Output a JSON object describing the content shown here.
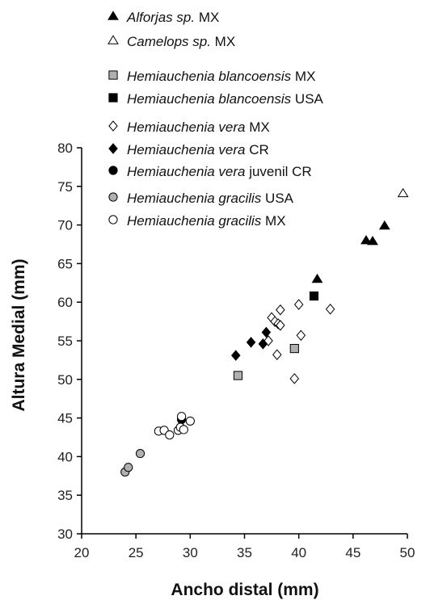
{
  "chart_data": {
    "type": "scatter",
    "title": "",
    "xlabel": "Ancho distal (mm)",
    "ylabel": "Altura Medial (mm)",
    "xlim": [
      20,
      50
    ],
    "ylim": [
      30,
      80
    ],
    "xticks": [
      20,
      25,
      30,
      35,
      40,
      45,
      50
    ],
    "yticks": [
      30,
      35,
      40,
      45,
      50,
      55,
      60,
      65,
      70,
      75,
      80
    ],
    "grid": false,
    "legend_position": "top-left",
    "series": [
      {
        "id": "alforjas-mx",
        "genus": "Alforjas sp.",
        "region": "MX",
        "marker": "triangle",
        "fill": "#000000",
        "stroke": "#000000",
        "points": [
          [
            41.7,
            63.0
          ],
          [
            46.2,
            68.0
          ],
          [
            46.8,
            67.9
          ],
          [
            47.9,
            69.9
          ]
        ]
      },
      {
        "id": "camelops-mx",
        "genus": "Camelops sp.",
        "region": "MX",
        "marker": "triangle",
        "fill": "#ffffff",
        "stroke": "#000000",
        "points": [
          [
            49.6,
            74.1
          ]
        ]
      },
      {
        "id": "hblanco-mx",
        "genus": "Hemiauchenia blancoensis",
        "region": "MX",
        "marker": "square",
        "fill": "#b0b0b0",
        "stroke": "#000000",
        "points": [
          [
            34.4,
            50.5
          ],
          [
            39.6,
            54.0
          ]
        ]
      },
      {
        "id": "hblanco-usa",
        "genus": "Hemiauchenia blancoensis",
        "region": "USA",
        "marker": "square",
        "fill": "#000000",
        "stroke": "#000000",
        "points": [
          [
            41.4,
            60.8
          ]
        ]
      },
      {
        "id": "hvera-mx",
        "genus": "Hemiauchenia vera",
        "region": "MX",
        "marker": "diamond",
        "fill": "#ffffff",
        "stroke": "#000000",
        "points": [
          [
            37.2,
            55.0
          ],
          [
            37.5,
            58.0
          ],
          [
            37.8,
            57.5
          ],
          [
            38.0,
            53.2
          ],
          [
            38.1,
            57.2
          ],
          [
            38.3,
            59.0
          ],
          [
            38.3,
            57.0
          ],
          [
            39.6,
            50.1
          ],
          [
            40.0,
            59.7
          ],
          [
            40.2,
            55.7
          ],
          [
            42.9,
            59.1
          ]
        ]
      },
      {
        "id": "hvera-cr",
        "genus": "Hemiauchenia vera",
        "region": "CR",
        "marker": "diamond",
        "fill": "#000000",
        "stroke": "#000000",
        "points": [
          [
            34.2,
            53.1
          ],
          [
            35.6,
            54.8
          ],
          [
            36.7,
            54.6
          ],
          [
            37.0,
            56.1
          ]
        ]
      },
      {
        "id": "hvera-juv-cr",
        "genus": "Hemiauchenia vera",
        "region": "juvenil  CR",
        "marker": "circle",
        "fill": "#000000",
        "stroke": "#000000",
        "points": [
          [
            29.2,
            44.8
          ]
        ]
      },
      {
        "id": "hgracilis-usa",
        "genus": "Hemiauchenia gracilis",
        "region": "USA",
        "marker": "circle",
        "fill": "#b0b0b0",
        "stroke": "#000000",
        "points": [
          [
            24.0,
            38.0
          ],
          [
            24.3,
            38.6
          ],
          [
            25.4,
            40.4
          ]
        ]
      },
      {
        "id": "hgracilis-mx",
        "genus": "Hemiauchenia gracilis",
        "region": "MX",
        "marker": "circle",
        "fill": "#ffffff",
        "stroke": "#000000",
        "points": [
          [
            27.1,
            43.3
          ],
          [
            27.6,
            43.4
          ],
          [
            28.1,
            42.8
          ],
          [
            28.9,
            43.4
          ],
          [
            29.1,
            43.8
          ],
          [
            29.2,
            45.2
          ],
          [
            29.4,
            43.5
          ],
          [
            30.0,
            44.6
          ]
        ]
      }
    ]
  }
}
